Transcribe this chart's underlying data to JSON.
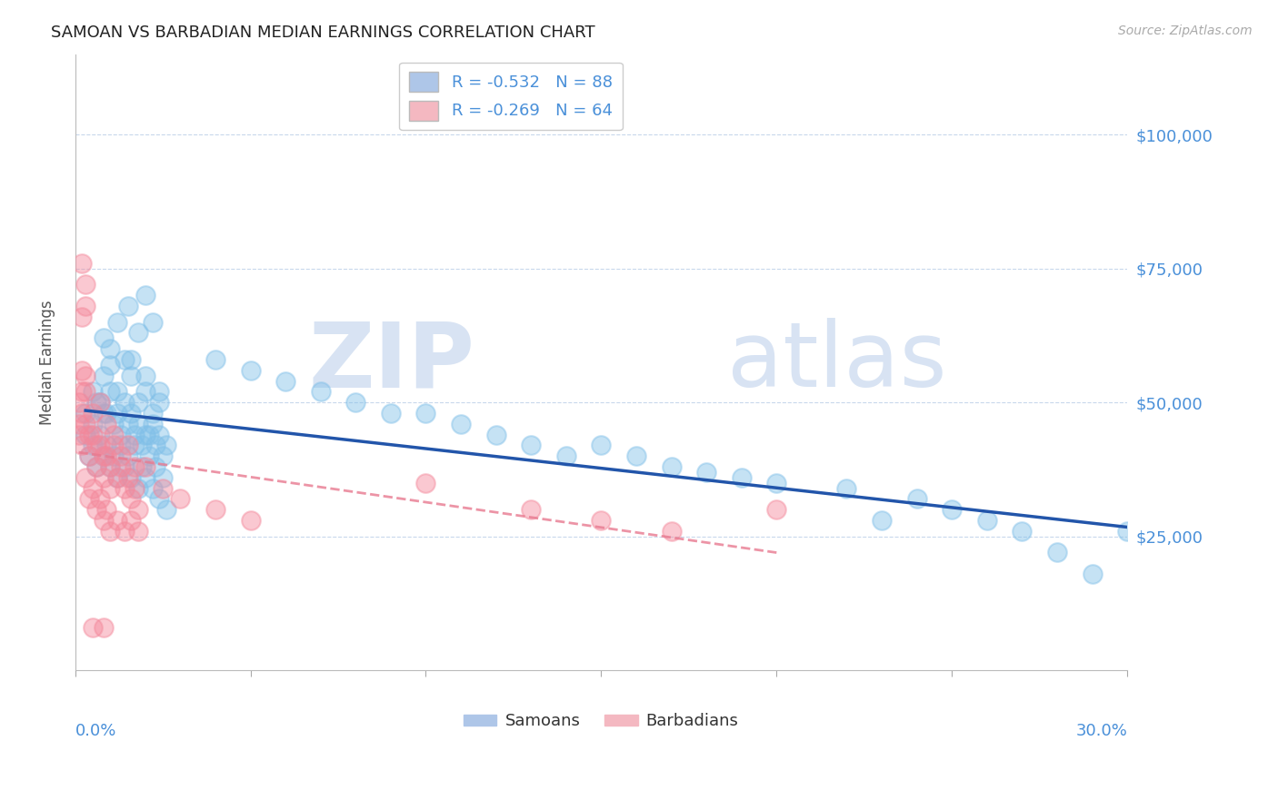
{
  "title": "SAMOAN VS BARBADIAN MEDIAN EARNINGS CORRELATION CHART",
  "source": "Source: ZipAtlas.com",
  "ylabel": "Median Earnings",
  "ytick_values": [
    25000,
    50000,
    75000,
    100000
  ],
  "ylim": [
    0,
    115000
  ],
  "xlim": [
    0.0,
    0.3
  ],
  "samoan_color": "#7fbfe8",
  "barbadian_color": "#f4879a",
  "trend_samoan_color": "#2255aa",
  "trend_barbadian_color": "#e87a90",
  "watermark_zip": "ZIP",
  "watermark_atlas": "atlas",
  "background_color": "#ffffff",
  "samoans": [
    [
      0.005,
      52000
    ],
    [
      0.008,
      62000
    ],
    [
      0.01,
      57000
    ],
    [
      0.012,
      65000
    ],
    [
      0.015,
      68000
    ],
    [
      0.018,
      63000
    ],
    [
      0.02,
      70000
    ],
    [
      0.022,
      65000
    ],
    [
      0.008,
      55000
    ],
    [
      0.01,
      60000
    ],
    [
      0.012,
      52000
    ],
    [
      0.014,
      58000
    ],
    [
      0.016,
      55000
    ],
    [
      0.018,
      50000
    ],
    [
      0.02,
      52000
    ],
    [
      0.022,
      48000
    ],
    [
      0.024,
      52000
    ],
    [
      0.006,
      50000
    ],
    [
      0.008,
      48000
    ],
    [
      0.01,
      52000
    ],
    [
      0.012,
      48000
    ],
    [
      0.014,
      50000
    ],
    [
      0.016,
      48000
    ],
    [
      0.018,
      46000
    ],
    [
      0.02,
      44000
    ],
    [
      0.022,
      46000
    ],
    [
      0.024,
      44000
    ],
    [
      0.026,
      42000
    ],
    [
      0.003,
      48000
    ],
    [
      0.005,
      46000
    ],
    [
      0.007,
      50000
    ],
    [
      0.009,
      48000
    ],
    [
      0.011,
      46000
    ],
    [
      0.013,
      44000
    ],
    [
      0.015,
      46000
    ],
    [
      0.017,
      44000
    ],
    [
      0.019,
      42000
    ],
    [
      0.021,
      44000
    ],
    [
      0.023,
      42000
    ],
    [
      0.025,
      40000
    ],
    [
      0.003,
      44000
    ],
    [
      0.005,
      42000
    ],
    [
      0.007,
      44000
    ],
    [
      0.009,
      42000
    ],
    [
      0.011,
      40000
    ],
    [
      0.013,
      42000
    ],
    [
      0.015,
      40000
    ],
    [
      0.017,
      42000
    ],
    [
      0.019,
      38000
    ],
    [
      0.021,
      40000
    ],
    [
      0.023,
      38000
    ],
    [
      0.025,
      36000
    ],
    [
      0.004,
      40000
    ],
    [
      0.006,
      38000
    ],
    [
      0.008,
      40000
    ],
    [
      0.01,
      38000
    ],
    [
      0.012,
      36000
    ],
    [
      0.014,
      38000
    ],
    [
      0.016,
      36000
    ],
    [
      0.018,
      34000
    ],
    [
      0.02,
      36000
    ],
    [
      0.022,
      34000
    ],
    [
      0.024,
      32000
    ],
    [
      0.026,
      30000
    ],
    [
      0.016,
      58000
    ],
    [
      0.02,
      55000
    ],
    [
      0.024,
      50000
    ],
    [
      0.15,
      42000
    ],
    [
      0.17,
      38000
    ],
    [
      0.19,
      36000
    ],
    [
      0.1,
      48000
    ],
    [
      0.12,
      44000
    ],
    [
      0.14,
      40000
    ],
    [
      0.2,
      35000
    ],
    [
      0.22,
      34000
    ],
    [
      0.24,
      32000
    ],
    [
      0.16,
      40000
    ],
    [
      0.18,
      37000
    ],
    [
      0.26,
      28000
    ],
    [
      0.28,
      22000
    ],
    [
      0.3,
      26000
    ],
    [
      0.29,
      18000
    ],
    [
      0.25,
      30000
    ],
    [
      0.27,
      26000
    ],
    [
      0.23,
      28000
    ],
    [
      0.13,
      42000
    ],
    [
      0.11,
      46000
    ],
    [
      0.09,
      48000
    ],
    [
      0.08,
      50000
    ],
    [
      0.07,
      52000
    ],
    [
      0.06,
      54000
    ],
    [
      0.05,
      56000
    ],
    [
      0.04,
      58000
    ]
  ],
  "barbadians": [
    [
      0.003,
      52000
    ],
    [
      0.005,
      48000
    ],
    [
      0.007,
      50000
    ],
    [
      0.009,
      46000
    ],
    [
      0.011,
      44000
    ],
    [
      0.013,
      40000
    ],
    [
      0.015,
      42000
    ],
    [
      0.017,
      38000
    ],
    [
      0.003,
      46000
    ],
    [
      0.005,
      44000
    ],
    [
      0.007,
      42000
    ],
    [
      0.009,
      40000
    ],
    [
      0.011,
      42000
    ],
    [
      0.013,
      38000
    ],
    [
      0.015,
      36000
    ],
    [
      0.017,
      34000
    ],
    [
      0.004,
      44000
    ],
    [
      0.006,
      42000
    ],
    [
      0.008,
      40000
    ],
    [
      0.01,
      38000
    ],
    [
      0.004,
      40000
    ],
    [
      0.006,
      38000
    ],
    [
      0.008,
      36000
    ],
    [
      0.01,
      34000
    ],
    [
      0.012,
      36000
    ],
    [
      0.014,
      34000
    ],
    [
      0.016,
      32000
    ],
    [
      0.018,
      30000
    ],
    [
      0.003,
      36000
    ],
    [
      0.005,
      34000
    ],
    [
      0.007,
      32000
    ],
    [
      0.009,
      30000
    ],
    [
      0.002,
      76000
    ],
    [
      0.003,
      72000
    ],
    [
      0.002,
      66000
    ],
    [
      0.003,
      68000
    ],
    [
      0.002,
      56000
    ],
    [
      0.003,
      55000
    ],
    [
      0.001,
      50000
    ],
    [
      0.002,
      52000
    ],
    [
      0.001,
      46000
    ],
    [
      0.002,
      48000
    ],
    [
      0.001,
      44000
    ],
    [
      0.002,
      42000
    ],
    [
      0.004,
      32000
    ],
    [
      0.006,
      30000
    ],
    [
      0.008,
      28000
    ],
    [
      0.01,
      26000
    ],
    [
      0.012,
      28000
    ],
    [
      0.014,
      26000
    ],
    [
      0.016,
      28000
    ],
    [
      0.018,
      26000
    ],
    [
      0.1,
      35000
    ],
    [
      0.13,
      30000
    ],
    [
      0.15,
      28000
    ],
    [
      0.17,
      26000
    ],
    [
      0.2,
      30000
    ],
    [
      0.005,
      8000
    ],
    [
      0.008,
      8000
    ],
    [
      0.02,
      38000
    ],
    [
      0.025,
      34000
    ],
    [
      0.03,
      32000
    ],
    [
      0.04,
      30000
    ],
    [
      0.05,
      28000
    ]
  ]
}
